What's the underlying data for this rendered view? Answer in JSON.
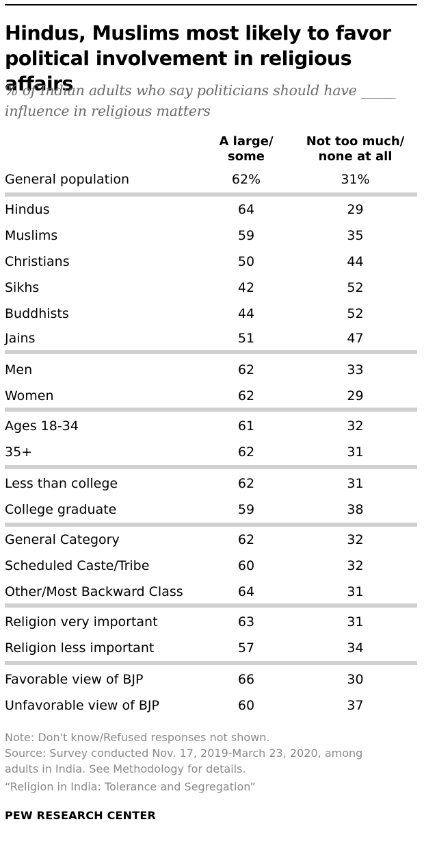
{
  "title_line1": "Hindus, Muslims most likely to favor",
  "title_line2": "political involvement in religious affairs",
  "subtitle_line1": "% of Indian adults who say politicians should have _____",
  "subtitle_line2": "influence in religious matters",
  "chart_data": {
    "type": "table",
    "title": "Hindus, Muslims most likely to favor political involvement in religious affairs",
    "subtitle": "% of Indian adults who say politicians should have _____ influence in religious matters",
    "columns": [
      {
        "line1": "A large/",
        "line2": "some"
      },
      {
        "line1": "Not too much/",
        "line2": "none at all"
      }
    ],
    "groups": [
      [
        {
          "label": "General population",
          "a": "62%",
          "b": "31%"
        }
      ],
      [
        {
          "label": "Hindus",
          "a": "64",
          "b": "29"
        },
        {
          "label": "Muslims",
          "a": "59",
          "b": "35"
        },
        {
          "label": "Christians",
          "a": "50",
          "b": "44"
        },
        {
          "label": "Sikhs",
          "a": "42",
          "b": "52"
        },
        {
          "label": "Buddhists",
          "a": "44",
          "b": "52"
        },
        {
          "label": "Jains",
          "a": "51",
          "b": "47"
        }
      ],
      [
        {
          "label": "Men",
          "a": "62",
          "b": "33"
        },
        {
          "label": "Women",
          "a": "62",
          "b": "29"
        }
      ],
      [
        {
          "label": "Ages 18-34",
          "a": "61",
          "b": "32"
        },
        {
          "label": "35+",
          "a": "62",
          "b": "31"
        }
      ],
      [
        {
          "label": "Less than college",
          "a": "62",
          "b": "31"
        },
        {
          "label": "College graduate",
          "a": "59",
          "b": "38"
        }
      ],
      [
        {
          "label": "General Category",
          "a": "62",
          "b": "32"
        },
        {
          "label": "Scheduled Caste/Tribe",
          "a": "60",
          "b": "32"
        },
        {
          "label": "Other/Most Backward Class",
          "a": "64",
          "b": "31"
        }
      ],
      [
        {
          "label": "Religion very important",
          "a": "63",
          "b": "31"
        },
        {
          "label": "Religion less important",
          "a": "57",
          "b": "34"
        }
      ],
      [
        {
          "label": "Favorable view of BJP",
          "a": "66",
          "b": "30"
        },
        {
          "label": "Unfavorable view of BJP",
          "a": "60",
          "b": "37"
        }
      ]
    ]
  },
  "notes": [
    "Note: Don't know/Refused responses not shown.",
    "Source: Survey conducted Nov. 17, 2019-March 23, 2020, among",
    "adults in India. See Methodology for details.",
    "“Religion in India: Tolerance and Segregation”"
  ],
  "brand": "PEW RESEARCH CENTER",
  "colors": {
    "separator": "#d0d0d0",
    "subtitle": "#6b6b6b",
    "note": "#8a8a8a"
  }
}
